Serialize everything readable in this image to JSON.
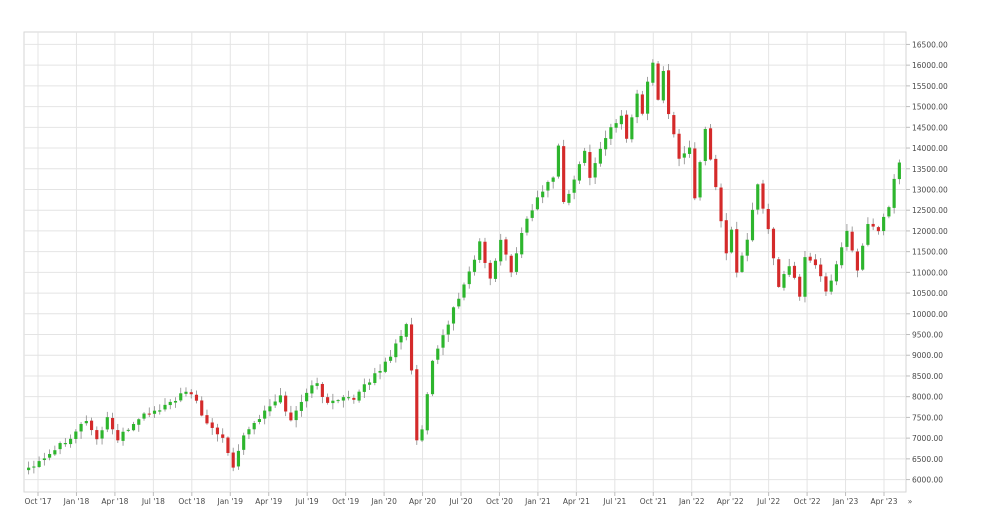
{
  "chart_data": {
    "type": "candlestick",
    "ylim": [
      5700,
      16800
    ],
    "y_ticks": [
      6000,
      6500,
      7000,
      7500,
      8000,
      8500,
      9000,
      9500,
      10000,
      10500,
      11000,
      11500,
      12000,
      12500,
      13000,
      13500,
      14000,
      14500,
      15000,
      15500,
      16000,
      16500
    ],
    "y_tick_labels": [
      "6000.00",
      "6500.00",
      "7000.00",
      "7500.00",
      "8000.00",
      "8500.00",
      "9000.00",
      "9500.00",
      "10000.00",
      "10500.00",
      "11000.00",
      "11500.00",
      "12000.00",
      "12500.00",
      "13000.00",
      "13500.00",
      "14000.00",
      "14500.00",
      "15000.00",
      "15500.00",
      "16000.00",
      "16500.00"
    ],
    "x_ticks": [
      "Oct '17",
      "Jan '18",
      "Apr '18",
      "Jul '18",
      "Oct '18",
      "Jan '19",
      "Apr '19",
      "Jul '19",
      "Oct '19",
      "Jan '20",
      "Apr '20",
      "Jul '20",
      "Oct '20",
      "Jan '21",
      "Apr '21",
      "Jul '21",
      "Oct '21",
      "Jan '22",
      "Apr '22",
      "Jul '22",
      "Oct '22",
      "Jan '23",
      "Apr '23"
    ],
    "x_axis_end_marker": "»",
    "grid": true,
    "up_color": "#2db52d",
    "down_color": "#d42a2a",
    "wick_color": "#8a8a8a",
    "path_points": [
      [
        0,
        6300
      ],
      [
        3,
        6550
      ],
      [
        8,
        7050
      ],
      [
        11,
        7450
      ],
      [
        13,
        6950
      ],
      [
        15,
        7500
      ],
      [
        17,
        6950
      ],
      [
        21,
        7500
      ],
      [
        25,
        7700
      ],
      [
        30,
        8100
      ],
      [
        32,
        7900
      ],
      [
        34,
        7300
      ],
      [
        37,
        7000
      ],
      [
        39,
        6350
      ],
      [
        41,
        7100
      ],
      [
        44,
        7500
      ],
      [
        48,
        8000
      ],
      [
        50,
        7400
      ],
      [
        53,
        8150
      ],
      [
        55,
        8300
      ],
      [
        57,
        7800
      ],
      [
        60,
        8050
      ],
      [
        62,
        7900
      ],
      [
        65,
        8400
      ],
      [
        68,
        8800
      ],
      [
        71,
        9500
      ],
      [
        72,
        9800
      ],
      [
        73,
        8600
      ],
      [
        74,
        6900
      ],
      [
        75,
        7200
      ],
      [
        77,
        8800
      ],
      [
        80,
        9800
      ],
      [
        84,
        11000
      ],
      [
        86,
        11700
      ],
      [
        88,
        10800
      ],
      [
        90,
        11800
      ],
      [
        92,
        11000
      ],
      [
        94,
        12000
      ],
      [
        97,
        12800
      ],
      [
        100,
        13300
      ],
      [
        101,
        14000
      ],
      [
        102,
        12700
      ],
      [
        104,
        13200
      ],
      [
        106,
        14000
      ],
      [
        107,
        13300
      ],
      [
        110,
        14300
      ],
      [
        113,
        14800
      ],
      [
        114,
        14200
      ],
      [
        116,
        15300
      ],
      [
        117,
        14800
      ],
      [
        118,
        15600
      ],
      [
        119,
        16100
      ],
      [
        120,
        15200
      ],
      [
        121,
        15800
      ],
      [
        122,
        14800
      ],
      [
        124,
        13800
      ],
      [
        126,
        14000
      ],
      [
        127,
        12800
      ],
      [
        129,
        14500
      ],
      [
        131,
        13000
      ],
      [
        132,
        12300
      ],
      [
        133,
        11500
      ],
      [
        134,
        12000
      ],
      [
        135,
        11000
      ],
      [
        137,
        11800
      ],
      [
        139,
        13100
      ],
      [
        141,
        12000
      ],
      [
        142,
        11400
      ],
      [
        143,
        10700
      ],
      [
        145,
        11200
      ],
      [
        147,
        10400
      ],
      [
        148,
        11400
      ],
      [
        150,
        11200
      ],
      [
        152,
        10500
      ],
      [
        154,
        11200
      ],
      [
        156,
        12000
      ],
      [
        158,
        11100
      ],
      [
        160,
        12100
      ],
      [
        162,
        12000
      ],
      [
        164,
        12600
      ],
      [
        165,
        13200
      ],
      [
        166,
        13700
      ]
    ]
  }
}
